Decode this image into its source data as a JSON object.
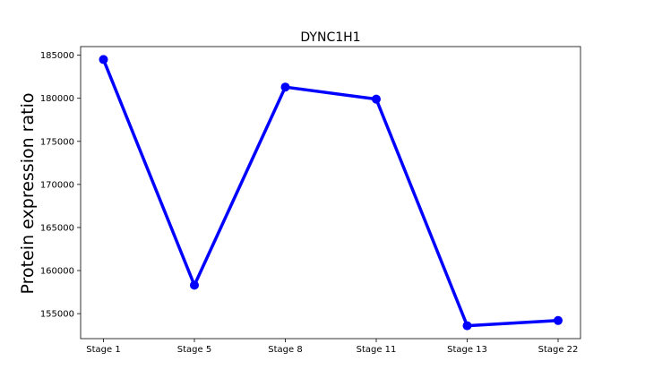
{
  "chart_data": {
    "type": "line",
    "title": "DYNC1H1",
    "xlabel": "",
    "ylabel": "Protein expression ratio",
    "categories": [
      "Stage 1",
      "Stage 5",
      "Stage 8",
      "Stage 11",
      "Stage 13",
      "Stage 22"
    ],
    "series": [
      {
        "values": [
          184500,
          158300,
          181300,
          179900,
          153600,
          154200
        ]
      }
    ],
    "ylim": [
      152100,
      186000
    ],
    "yticks": [
      155000,
      160000,
      165000,
      170000,
      175000,
      180000,
      185000
    ],
    "ytick_labels": [
      "155000",
      "160000",
      "165000",
      "170000",
      "175000",
      "180000",
      "185000"
    ],
    "grid": false,
    "line_color": "#0000ff",
    "marker_color": "#0000ff"
  }
}
